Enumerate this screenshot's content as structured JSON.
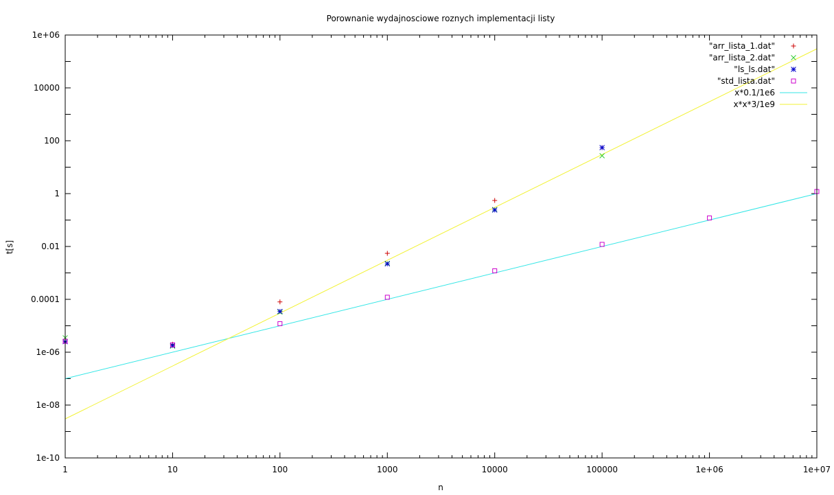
{
  "chart_data": {
    "type": "scatter",
    "title": "Porownanie wydajnosciowe roznych implementacji listy",
    "xlabel": "n",
    "ylabel": "t[s]",
    "xscale": "log",
    "yscale": "log",
    "xlim": [
      1,
      10000000
    ],
    "ylim": [
      1e-10,
      1000000
    ],
    "x_ticks": [
      {
        "value": 1,
        "label": "1"
      },
      {
        "value": 10,
        "label": "10"
      },
      {
        "value": 100,
        "label": "100"
      },
      {
        "value": 1000,
        "label": "1000"
      },
      {
        "value": 10000,
        "label": "10000"
      },
      {
        "value": 100000,
        "label": "100000"
      },
      {
        "value": 1000000,
        "label": "1e+06"
      },
      {
        "value": 10000000,
        "label": "1e+07"
      }
    ],
    "y_ticks": [
      {
        "value": 1e-10,
        "label": "1e-10"
      },
      {
        "value": 1e-08,
        "label": "1e-08"
      },
      {
        "value": 1e-06,
        "label": "1e-06"
      },
      {
        "value": 0.0001,
        "label": "0.0001"
      },
      {
        "value": 0.01,
        "label": "0.01"
      },
      {
        "value": 1,
        "label": "1"
      },
      {
        "value": 100,
        "label": "100"
      },
      {
        "value": 10000,
        "label": "10000"
      },
      {
        "value": 1000000,
        "label": "1e+06"
      }
    ],
    "grid": false,
    "legend_position": "top-right",
    "series": [
      {
        "name": "\"arr_lista_1.dat\"",
        "kind": "points",
        "marker": "plus",
        "color": "#cc0000",
        "points": [
          [
            1,
            2.5e-06
          ],
          [
            10,
            2e-06
          ],
          [
            100,
            8e-05
          ],
          [
            1000,
            0.0055
          ],
          [
            10000,
            0.55
          ],
          [
            100000,
            55
          ]
        ]
      },
      {
        "name": "\"arr_lista_2.dat\"",
        "kind": "points",
        "marker": "cross",
        "color": "#33cc33",
        "points": [
          [
            1,
            3.5e-06
          ],
          [
            10,
            1.7e-06
          ],
          [
            100,
            3.3e-05
          ],
          [
            1000,
            0.0023
          ],
          [
            10000,
            0.25
          ],
          [
            100000,
            27
          ]
        ]
      },
      {
        "name": "\"ls_ls.dat\"",
        "kind": "points",
        "marker": "star",
        "color": "#0000cc",
        "points": [
          [
            1,
            2.5e-06
          ],
          [
            10,
            1.8e-06
          ],
          [
            100,
            3.5e-05
          ],
          [
            1000,
            0.0022
          ],
          [
            10000,
            0.24
          ],
          [
            100000,
            55
          ]
        ]
      },
      {
        "name": "\"std_lista.dat\"",
        "kind": "points",
        "marker": "square",
        "color": "#cc00cc",
        "points": [
          [
            1,
            2.6e-06
          ],
          [
            10,
            1.9e-06
          ],
          [
            100,
            1.2e-05
          ],
          [
            1000,
            0.00012
          ],
          [
            10000,
            0.0012
          ],
          [
            100000,
            0.012
          ],
          [
            1000000,
            0.12
          ],
          [
            10000000,
            1.2
          ]
        ]
      },
      {
        "name": "x*0.1/1e6",
        "kind": "function",
        "color": "#33e6e6",
        "samples": [
          [
            1,
            1e-07
          ],
          [
            10000000,
            1
          ]
        ]
      },
      {
        "name": "x*x*3/1e9",
        "kind": "function",
        "color": "#f2f233",
        "samples": [
          [
            1,
            3e-09
          ],
          [
            10000000,
            300000
          ]
        ]
      }
    ]
  }
}
